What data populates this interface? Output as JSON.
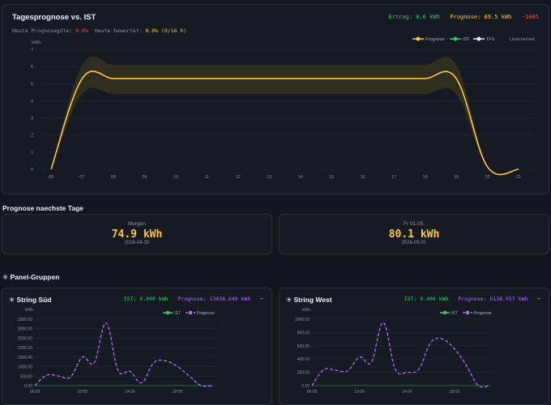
{
  "main": {
    "title": "Tagesprognose vs. IST",
    "ertrag": "Ertrag: 0.0 kWh",
    "prognose": "Prognose: 69.5 kWh",
    "delta": "-100%",
    "quality_label": "Heute Prognosegüte:",
    "quality_value": "0.0%",
    "rated_label": "Heute bewertet:",
    "rated_value": "0.0% (0/16 h)",
    "legend": {
      "prognose": "Prognose",
      "ist": "IST",
      "tfs": "TFS",
      "unsicherheit": "Unsicherheit"
    },
    "colors": {
      "prognose": "#ffc53d",
      "ist": "#34c76b",
      "tfs": "#e6e9ee",
      "band": "#3a3520"
    }
  },
  "chart_data": [
    {
      "type": "line",
      "title": "Tagesprognose vs. IST",
      "ylabel": "kWh",
      "ylim": [
        0,
        7
      ],
      "yticks": [
        "0",
        "1",
        "2",
        "3",
        "4",
        "5",
        "6",
        "7"
      ],
      "x": [
        "06",
        "07",
        "08",
        "09",
        "10",
        "11",
        "12",
        "13",
        "14",
        "15",
        "16",
        "17",
        "18",
        "19",
        "20",
        "21"
      ],
      "series": [
        {
          "name": "Prognose",
          "values": [
            0,
            5.3,
            5.3,
            5.3,
            5.3,
            5.3,
            5.3,
            5.3,
            5.3,
            5.3,
            5.3,
            5.3,
            5.3,
            5.3,
            0.15,
            0
          ]
        },
        {
          "name": "Unsicherheit",
          "upper": [
            0,
            6.1,
            6.1,
            6.1,
            6.1,
            6.1,
            6.1,
            6.1,
            6.1,
            6.1,
            6.1,
            6.1,
            6.1,
            6.1,
            0.2,
            0
          ],
          "lower": [
            0,
            4.4,
            4.4,
            4.4,
            4.4,
            4.4,
            4.4,
            4.4,
            4.4,
            4.4,
            4.4,
            4.4,
            4.4,
            4.4,
            0.1,
            0
          ]
        }
      ],
      "grid": true,
      "legend": "top-right"
    },
    {
      "type": "line",
      "title": "String Süd",
      "ylabel": "kWh",
      "ylim": [
        0,
        3500
      ],
      "yticks": [
        "0.00",
        "500.00",
        "1000.00",
        "1500.00",
        "2000.00",
        "2500.00",
        "3000.00",
        "3500.00"
      ],
      "xticks": [
        "06:00",
        "10:00",
        "14:00",
        "18:00"
      ],
      "x": [
        6,
        7,
        8,
        9,
        10,
        11,
        12,
        13,
        14,
        15,
        16,
        17,
        18,
        19,
        20,
        21
      ],
      "series": [
        {
          "name": "IST",
          "values": [
            0,
            0,
            0,
            0,
            0,
            0,
            0,
            0,
            0,
            0,
            0,
            0,
            0,
            0,
            0,
            0
          ]
        },
        {
          "name": "Prognose",
          "values": [
            0,
            550,
            500,
            450,
            1500,
            1200,
            3300,
            800,
            750,
            150,
            1200,
            1300,
            1000,
            500,
            0,
            0
          ]
        }
      ],
      "legend": "top-right"
    },
    {
      "type": "line",
      "title": "String West",
      "ylabel": "kWh",
      "ylim": [
        0,
        1000
      ],
      "yticks": [
        "0.00",
        "200.00",
        "400.00",
        "600.00",
        "800.00",
        "1000.00"
      ],
      "xticks": [
        "06:00",
        "10:00",
        "14:00",
        "18:00"
      ],
      "x": [
        6,
        7,
        8,
        9,
        10,
        11,
        12,
        13,
        14,
        15,
        16,
        17,
        18,
        19,
        20,
        21
      ],
      "series": [
        {
          "name": "IST",
          "values": [
            0,
            0,
            0,
            0,
            0,
            0,
            0,
            0,
            0,
            0,
            0,
            0,
            0,
            0,
            0,
            0
          ]
        },
        {
          "name": "Prognose",
          "values": [
            0,
            240,
            230,
            220,
            430,
            350,
            950,
            250,
            200,
            250,
            650,
            700,
            550,
            300,
            0,
            0
          ]
        }
      ],
      "legend": "top-right"
    }
  ],
  "forecast": {
    "section_title": "Prognose naechste Tage",
    "days": [
      {
        "label": "Morgen",
        "value": "74.9 kWh",
        "date": "2026-04-30"
      },
      {
        "label": "Fr 01.05.",
        "value": "80.1 kWh",
        "date": "2026-05-01"
      }
    ]
  },
  "groups": {
    "section_title": "Panel-Gruppen",
    "icon": "sun-icon",
    "cards": [
      {
        "title": "String Süd",
        "ist": "IST: 0.000 kWh",
        "prognose": "Prognose: 13438.640 kWh",
        "toggle": "−",
        "legend_ist": "IST",
        "legend_prognose": "Prognose",
        "unit": "kWh"
      },
      {
        "title": "String West",
        "ist": "IST: 0.000 kWh",
        "prognose": "Prognose: 5138.957 kWh",
        "toggle": "−",
        "legend_ist": "IST",
        "legend_prognose": "Prognose",
        "unit": "kWh"
      }
    ]
  }
}
